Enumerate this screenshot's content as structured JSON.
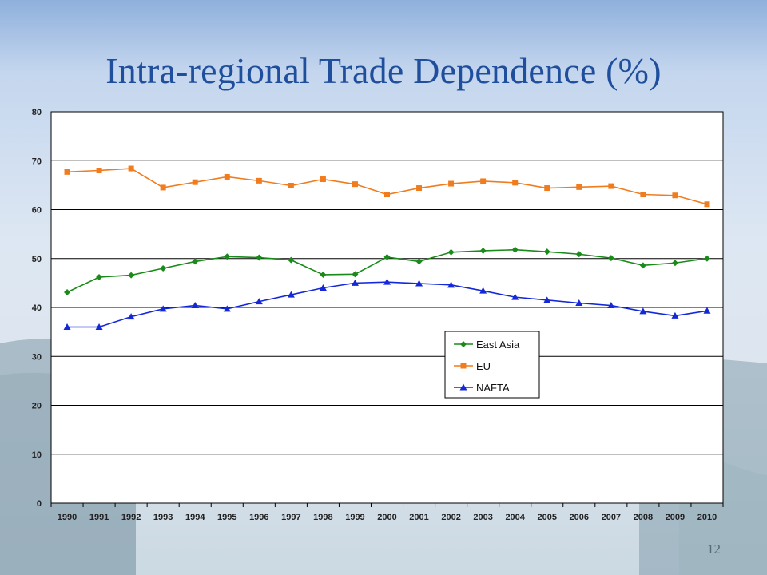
{
  "slide": {
    "title": "Intra-regional Trade Dependence (%)",
    "page_number": "12"
  },
  "colors": {
    "east_asia": "#1a8a1a",
    "eu": "#f07c1e",
    "nafta": "#1428d8",
    "title": "#1f4e9c"
  },
  "chart_data": {
    "type": "line",
    "title": "",
    "xlabel": "",
    "ylabel": "",
    "ylim": [
      0,
      80
    ],
    "yticks": [
      0,
      10,
      20,
      30,
      40,
      50,
      60,
      70,
      80
    ],
    "grid": "horizontal",
    "legend_position": "lower-right",
    "x": [
      "1990",
      "1991",
      "1992",
      "1993",
      "1994",
      "1995",
      "1996",
      "1997",
      "1998",
      "1999",
      "2000",
      "2001",
      "2002",
      "2003",
      "2004",
      "2005",
      "2006",
      "2007",
      "2008",
      "2009",
      "2010"
    ],
    "series": [
      {
        "name": "East Asia",
        "marker": "diamond",
        "color": "#1a8a1a",
        "values": [
          43.1,
          46.2,
          46.6,
          48.0,
          49.4,
          50.4,
          50.2,
          49.7,
          46.7,
          46.8,
          50.3,
          49.4,
          51.3,
          51.6,
          51.8,
          51.4,
          50.9,
          50.1,
          48.6,
          49.1,
          50.0
        ]
      },
      {
        "name": "EU",
        "marker": "square",
        "color": "#f07c1e",
        "values": [
          67.7,
          68.0,
          68.4,
          64.5,
          65.6,
          66.7,
          65.9,
          64.9,
          66.2,
          65.2,
          63.1,
          64.4,
          65.3,
          65.8,
          65.5,
          64.4,
          64.6,
          64.8,
          63.1,
          62.9,
          61.1
        ]
      },
      {
        "name": "NAFTA",
        "marker": "triangle",
        "color": "#1428d8",
        "values": [
          36.0,
          36.0,
          38.1,
          39.7,
          40.4,
          39.7,
          41.2,
          42.6,
          44.0,
          45.0,
          45.2,
          44.9,
          44.6,
          43.4,
          42.1,
          41.5,
          40.9,
          40.4,
          39.2,
          38.3,
          39.3
        ]
      }
    ]
  }
}
